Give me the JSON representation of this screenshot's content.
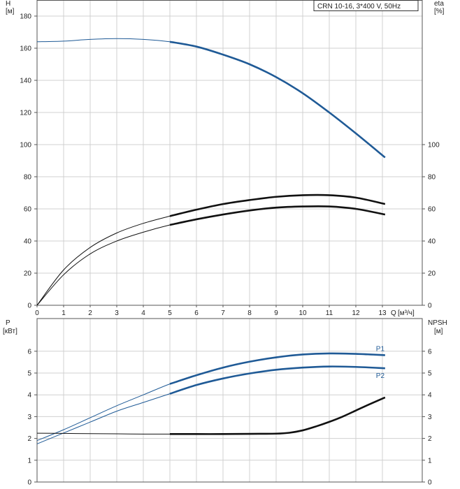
{
  "chart_data": [
    {
      "type": "line",
      "title": "CRN 10-16, 3*400 V, 50Hz",
      "left_axis": {
        "symbol": "H",
        "unit": "[м]",
        "ylim": [
          0,
          190
        ],
        "ticks": [
          0,
          20,
          40,
          60,
          80,
          100,
          120,
          140,
          160,
          180
        ]
      },
      "right_axis": {
        "symbol": "eta",
        "unit": "[%]",
        "ylim": [
          0,
          190
        ],
        "ticks": [
          0,
          20,
          40,
          60,
          80,
          100
        ]
      },
      "x_axis": {
        "symbol": "Q",
        "unit": "[м³/ч]",
        "xlim": [
          0,
          14.5
        ],
        "ticks": [
          0,
          1,
          2,
          3,
          4,
          5,
          6,
          7,
          8,
          9,
          10,
          11,
          12,
          13
        ]
      },
      "grid": true,
      "series": [
        {
          "axis": "left",
          "color": "#1f5a96",
          "x": [
            0,
            1,
            2,
            3,
            4,
            5,
            6,
            7,
            8,
            9,
            10,
            11,
            12,
            13.1
          ],
          "y": [
            164,
            164.4,
            165.5,
            166,
            165.5,
            164,
            161,
            156,
            150,
            142,
            132,
            120,
            107,
            92
          ],
          "bold_from": 5
        },
        {
          "axis": "right",
          "color": "#111111",
          "x": [
            0,
            1,
            2,
            3,
            4,
            5,
            6,
            7,
            8,
            9,
            10,
            11,
            12,
            13.1
          ],
          "y": [
            0,
            22,
            36,
            45,
            51,
            55.5,
            59.5,
            63,
            65.5,
            67.5,
            68.5,
            68.5,
            67,
            63
          ],
          "bold_from": 5
        },
        {
          "axis": "right",
          "color": "#111111",
          "x": [
            0,
            1,
            2,
            3,
            4,
            5,
            6,
            7,
            8,
            9,
            10,
            11,
            12,
            13.1
          ],
          "y": [
            0,
            19,
            32,
            40,
            45.5,
            50,
            53.5,
            56.5,
            59,
            60.8,
            61.5,
            61.5,
            60,
            56.5
          ],
          "bold_from": 5
        }
      ]
    },
    {
      "type": "line",
      "left_axis": {
        "symbol": "P",
        "unit": "[кВт]",
        "ylim": [
          0,
          7.5
        ],
        "ticks": [
          0,
          1,
          2,
          3,
          4,
          5,
          6
        ]
      },
      "right_axis": {
        "symbol": "NPSH",
        "unit": "[м]",
        "ylim": [
          0,
          7.5
        ],
        "ticks": [
          0,
          1,
          2,
          3,
          4,
          5,
          6
        ]
      },
      "grid": true,
      "series": [
        {
          "name": "P1",
          "axis": "left",
          "color": "#1f5a96",
          "x": [
            0,
            1,
            2,
            3,
            4,
            5,
            6,
            7,
            8,
            9,
            10,
            11,
            12,
            13.1
          ],
          "y": [
            1.9,
            2.4,
            2.95,
            3.5,
            4.0,
            4.5,
            4.9,
            5.25,
            5.52,
            5.72,
            5.85,
            5.9,
            5.88,
            5.82
          ],
          "bold_from": 5
        },
        {
          "name": "P2",
          "axis": "left",
          "color": "#1f5a96",
          "x": [
            0,
            1,
            2,
            3,
            4,
            5,
            6,
            7,
            8,
            9,
            10,
            11,
            12,
            13.1
          ],
          "y": [
            1.75,
            2.25,
            2.75,
            3.25,
            3.65,
            4.05,
            4.45,
            4.75,
            4.98,
            5.15,
            5.25,
            5.3,
            5.28,
            5.22
          ],
          "bold_from": 5
        },
        {
          "axis": "right",
          "color": "#111111",
          "x": [
            0,
            1,
            2,
            3,
            4,
            5,
            6,
            7,
            8,
            9,
            9.5,
            10,
            10.5,
            11,
            11.5,
            12,
            12.5,
            13.1
          ],
          "y": [
            2.24,
            2.23,
            2.22,
            2.21,
            2.2,
            2.2,
            2.2,
            2.2,
            2.21,
            2.22,
            2.26,
            2.37,
            2.55,
            2.76,
            3.0,
            3.28,
            3.56,
            3.88
          ],
          "bold_from": 5
        }
      ]
    }
  ]
}
